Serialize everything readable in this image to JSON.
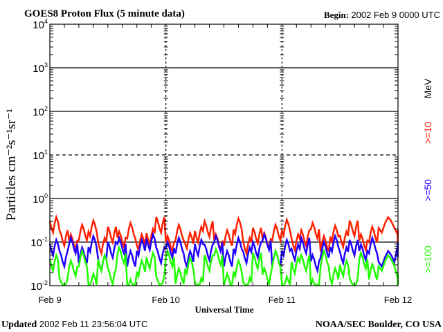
{
  "header": {
    "title": "GOES8 Proton Flux (5 minute data)",
    "begin_label": "Begin:",
    "begin_value": "2002 Feb 9 0000 UTC"
  },
  "footer": {
    "updated_label": "Updated",
    "updated_value": "2002 Feb 11 23:56:04 UTC",
    "credit": "NOAA/SEC Boulder, CO USA"
  },
  "chart_data": {
    "type": "line",
    "title": "GOES8 Proton Flux (5 minute data)",
    "xlabel": "Universal Time",
    "ylabel": "Particles cm⁻²s⁻¹sr⁻¹",
    "yscale": "log",
    "ylim": [
      0.01,
      10000
    ],
    "xlim": [
      "2002-02-09T00:00",
      "2002-02-12T00:00"
    ],
    "x_tick_labels": [
      "Feb 9",
      "Feb 10",
      "Feb 11",
      "Feb 12"
    ],
    "y_tick_labels": [
      {
        "base": "10",
        "exp": "-2",
        "value": 0.01
      },
      {
        "base": "10",
        "exp": "-1",
        "value": 0.1
      },
      {
        "base": "10",
        "exp": "0",
        "value": 1
      },
      {
        "base": "10",
        "exp": "1",
        "value": 10
      },
      {
        "base": "10",
        "exp": "2",
        "value": 100
      },
      {
        "base": "10",
        "exp": "3",
        "value": 1000
      },
      {
        "base": "10",
        "exp": "4",
        "value": 10000
      }
    ],
    "grid": {
      "solid": [
        0.1,
        1,
        100,
        1000
      ],
      "dashed": [
        10
      ],
      "day_lines": "dashed"
    },
    "legend_placement": "right",
    "legend_unit": "MeV",
    "x": [
      "2002-02-09T00:00",
      "2002-02-09T02:00",
      "2002-02-09T04:00",
      "2002-02-09T06:00",
      "2002-02-09T08:00",
      "2002-02-09T10:00",
      "2002-02-09T12:00",
      "2002-02-09T14:00",
      "2002-02-09T16:00",
      "2002-02-09T18:00",
      "2002-02-09T20:00",
      "2002-02-09T22:00",
      "2002-02-10T00:00",
      "2002-02-10T02:00",
      "2002-02-10T04:00",
      "2002-02-10T06:00",
      "2002-02-10T08:00",
      "2002-02-10T10:00",
      "2002-02-10T12:00",
      "2002-02-10T14:00",
      "2002-02-10T16:00",
      "2002-02-10T18:00",
      "2002-02-10T20:00",
      "2002-02-10T22:00",
      "2002-02-11T00:00",
      "2002-02-11T02:00",
      "2002-02-11T04:00",
      "2002-02-11T06:00",
      "2002-02-11T08:00",
      "2002-02-11T10:00",
      "2002-02-11T12:00",
      "2002-02-11T14:00",
      "2002-02-11T16:00",
      "2002-02-11T18:00",
      "2002-02-11T20:00",
      "2002-02-11T23:55"
    ],
    "series": [
      {
        "name": ">=10",
        "color": "#ff2000",
        "values": [
          0.3,
          0.15,
          0.12,
          0.2,
          0.25,
          0.1,
          0.18,
          0.14,
          0.22,
          0.12,
          0.16,
          0.3,
          0.11,
          0.2,
          0.13,
          0.18,
          0.24,
          0.12,
          0.15,
          0.28,
          0.1,
          0.17,
          0.13,
          0.2,
          0.26,
          0.12,
          0.15,
          0.22,
          0.11,
          0.19,
          0.14,
          0.25,
          0.12,
          0.18,
          0.3,
          0.15
        ]
      },
      {
        "name": ">=50",
        "color": "#2000ff",
        "values": [
          0.09,
          0.05,
          0.1,
          0.06,
          0.11,
          0.04,
          0.08,
          0.1,
          0.05,
          0.09,
          0.12,
          0.06,
          0.08,
          0.1,
          0.05,
          0.09,
          0.07,
          0.11,
          0.05,
          0.1,
          0.06,
          0.08,
          0.12,
          0.05,
          0.09,
          0.07,
          0.1,
          0.04,
          0.08,
          0.11,
          0.06,
          0.09,
          0.07,
          0.1,
          0.05,
          0.08
        ]
      },
      {
        "name": ">=100",
        "color": "#20ff00",
        "values": [
          0.04,
          0.012,
          0.03,
          0.05,
          0.015,
          0.04,
          0.02,
          0.06,
          0.011,
          0.03,
          0.045,
          0.013,
          0.05,
          0.02,
          0.035,
          0.012,
          0.04,
          0.055,
          0.015,
          0.03,
          0.012,
          0.045,
          0.02,
          0.05,
          0.013,
          0.035,
          0.04,
          0.011,
          0.05,
          0.02,
          0.03,
          0.012,
          0.045,
          0.025,
          0.04,
          0.015
        ]
      }
    ]
  }
}
